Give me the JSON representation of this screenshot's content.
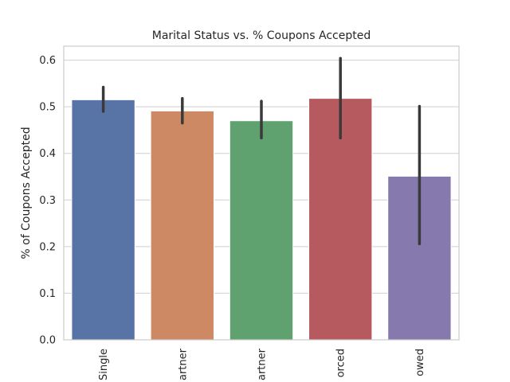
{
  "chart_data": {
    "type": "bar",
    "title": "Marital Status vs. % Coupons Accepted",
    "xlabel": "",
    "ylabel": "% of Coupons Accepted",
    "categories": [
      "Single",
      "Unmarried partner",
      "Married partner",
      "Divorced",
      "Widowed"
    ],
    "category_tick_text": [
      "Single",
      "artner",
      "artner",
      "orced",
      "owed"
    ],
    "values": [
      0.515,
      0.491,
      0.47,
      0.518,
      0.351
    ],
    "error_low": [
      0.49,
      0.465,
      0.433,
      0.433,
      0.206
    ],
    "error_high": [
      0.542,
      0.518,
      0.512,
      0.604,
      0.501
    ],
    "ylim": [
      0,
      0.63
    ],
    "yticks": [
      0.0,
      0.1,
      0.2,
      0.3,
      0.4,
      0.5,
      0.6
    ],
    "ytick_labels": [
      "0.0",
      "0.1",
      "0.2",
      "0.3",
      "0.4",
      "0.5",
      "0.6"
    ],
    "grid": true,
    "legend": "none",
    "colors": [
      "#5874a6",
      "#cd8963",
      "#5fa26f",
      "#b65a60",
      "#8679ae"
    ],
    "error_color": "#3a3a3a",
    "grid_color": "#cfcfcf",
    "axis_color": "#cccccc"
  }
}
